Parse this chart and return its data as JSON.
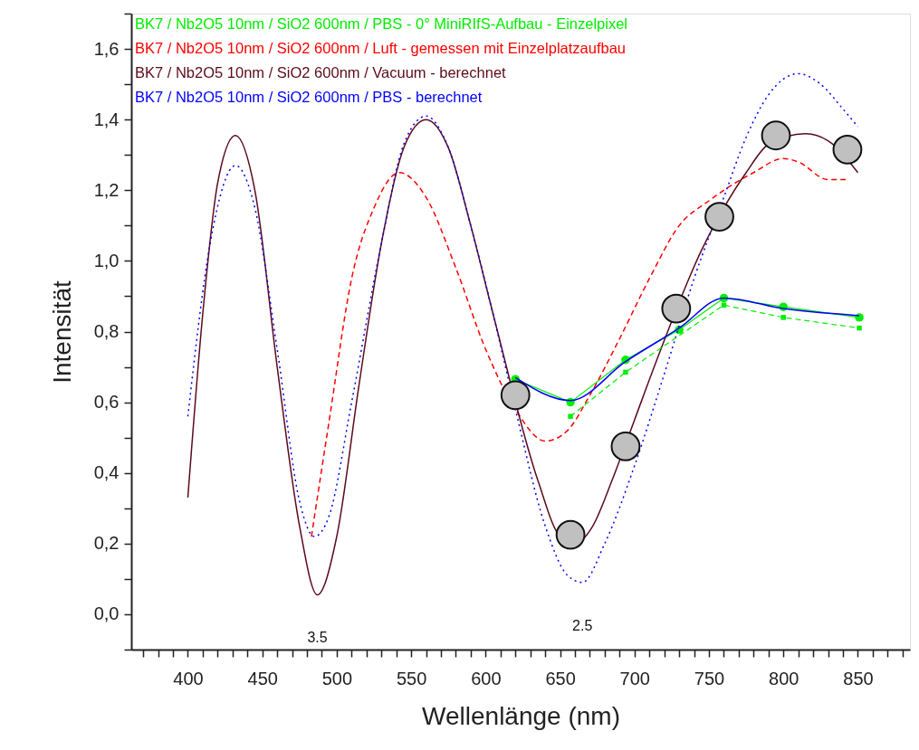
{
  "chart_data": {
    "type": "line",
    "xlabel": "Wellenlänge (nm)",
    "ylabel": "Intensität",
    "xlim": [
      362,
      885
    ],
    "ylim": [
      -0.1,
      1.7
    ],
    "xticks": [
      {
        "value": 370,
        "label": null
      },
      {
        "value": 380,
        "label": null
      },
      {
        "value": 390,
        "label": null
      },
      400,
      {
        "value": 410,
        "label": null
      },
      {
        "value": 420,
        "label": null
      },
      {
        "value": 430,
        "label": null
      },
      {
        "value": 440,
        "label": null
      },
      450,
      {
        "value": 460,
        "label": null
      },
      {
        "value": 470,
        "label": null
      },
      {
        "value": 480,
        "label": null
      },
      {
        "value": 490,
        "label": null
      },
      500,
      {
        "value": 510,
        "label": null
      },
      {
        "value": 520,
        "label": null
      },
      {
        "value": 530,
        "label": null
      },
      {
        "value": 540,
        "label": null
      },
      550,
      {
        "value": 560,
        "label": null
      },
      {
        "value": 570,
        "label": null
      },
      {
        "value": 580,
        "label": null
      },
      {
        "value": 590,
        "label": null
      },
      600,
      {
        "value": 610,
        "label": null
      },
      {
        "value": 620,
        "label": null
      },
      {
        "value": 630,
        "label": null
      },
      {
        "value": 640,
        "label": null
      },
      650,
      {
        "value": 660,
        "label": null
      },
      {
        "value": 670,
        "label": null
      },
      {
        "value": 680,
        "label": null
      },
      {
        "value": 690,
        "label": null
      },
      700,
      {
        "value": 710,
        "label": null
      },
      {
        "value": 720,
        "label": null
      },
      {
        "value": 730,
        "label": null
      },
      {
        "value": 740,
        "label": null
      },
      750,
      {
        "value": 760,
        "label": null
      },
      {
        "value": 770,
        "label": null
      },
      {
        "value": 780,
        "label": null
      },
      {
        "value": 790,
        "label": null
      },
      800,
      {
        "value": 810,
        "label": null
      },
      {
        "value": 820,
        "label": null
      },
      {
        "value": 830,
        "label": null
      },
      {
        "value": 840,
        "label": null
      },
      850,
      {
        "value": 860,
        "label": null
      },
      {
        "value": 870,
        "label": null
      },
      {
        "value": 880,
        "label": null
      }
    ],
    "yticks": [
      {
        "value": -0.1,
        "label": null
      },
      {
        "value": 0,
        "label": "0,0"
      },
      {
        "value": 0.1,
        "label": null
      },
      {
        "value": 0.2,
        "label": "0,2"
      },
      {
        "value": 0.3,
        "label": null
      },
      {
        "value": 0.4,
        "label": "0,4"
      },
      {
        "value": 0.5,
        "label": null
      },
      {
        "value": 0.6,
        "label": "0,6"
      },
      {
        "value": 0.7,
        "label": null
      },
      {
        "value": 0.8,
        "label": "0,8"
      },
      {
        "value": 0.9,
        "label": null
      },
      {
        "value": 1.0,
        "label": "1,0"
      },
      {
        "value": 1.1,
        "label": null
      },
      {
        "value": 1.2,
        "label": "1,2"
      },
      {
        "value": 1.3,
        "label": null
      },
      {
        "value": 1.4,
        "label": "1,4"
      },
      {
        "value": 1.5,
        "label": null
      },
      {
        "value": 1.6,
        "label": "1,6"
      },
      {
        "value": 1.7,
        "label": null
      }
    ],
    "grid": false,
    "legend": "top left",
    "annotations": [
      {
        "text": "3.5",
        "x": 487,
        "y": 0.055
      },
      {
        "text": "2.5",
        "x": 665,
        "y": 0.09
      }
    ],
    "series": [
      {
        "name": "BK7 / Nb2O5 10nm / SiO2 600nm / PBS - 0° MiniRIfS-Aufbau - Einzelpixel",
        "color": "#00ee00",
        "marker": "circle",
        "line_style": "solid",
        "x": [
          620,
          657,
          694,
          730,
          760,
          800,
          851
        ],
        "values": [
          0.665,
          0.6,
          0.72,
          0.805,
          0.895,
          0.87,
          0.84
        ]
      },
      {
        "name": "BK7 / Nb2O5 10nm / SiO2 600nm / Luft - gemessen mit Einzelplatzaufbau",
        "color": "#ff0000",
        "marker": "none",
        "line_style": "dashed",
        "x": [
          483,
          495,
          510,
          525,
          542,
          560,
          580,
          600,
          620,
          640,
          655,
          670,
          690,
          710,
          730,
          750,
          760,
          780,
          800,
          810,
          830,
          843
        ],
        "values": [
          0.22,
          0.55,
          0.95,
          1.15,
          1.25,
          1.18,
          0.98,
          0.75,
          0.58,
          0.49,
          0.52,
          0.62,
          0.78,
          0.95,
          1.1,
          1.17,
          1.2,
          1.25,
          1.29,
          1.28,
          1.23,
          1.23
        ]
      },
      {
        "name": "BK7 / Nb2O5 10nm / SiO2 600nm / Vacuum - berechnet",
        "color": "#5c0a1a",
        "marker": "none",
        "line_style": "solid",
        "x": [
          400,
          410,
          420,
          432,
          445,
          460,
          475,
          487,
          500,
          515,
          530,
          545,
          560,
          575,
          590,
          605,
          635,
          650,
          660,
          672,
          685,
          700,
          715,
          745,
          760,
          775,
          790,
          815,
          830,
          850
        ],
        "values": [
          0.33,
          0.85,
          1.22,
          1.355,
          1.2,
          0.7,
          0.25,
          0.055,
          0.22,
          0.65,
          1.05,
          1.32,
          1.4,
          1.32,
          1.1,
          0.85,
          0.38,
          0.22,
          0.2,
          0.25,
          0.38,
          0.55,
          0.72,
          1.03,
          1.15,
          1.25,
          1.33,
          1.36,
          1.34,
          1.25
        ]
      },
      {
        "name": "BK7 / Nb2O5 10nm / SiO2 600nm / PBS - berechnet",
        "color": "#0000ff",
        "marker": "none",
        "line_style": "dotted",
        "x": [
          400,
          415,
          432,
          445,
          460,
          475,
          485,
          495,
          510,
          530,
          545,
          560,
          575,
          590,
          605,
          620,
          640,
          655,
          665,
          680,
          700,
          720,
          740,
          760,
          775,
          790,
          810,
          825,
          840,
          850
        ],
        "values": [
          0.56,
          1.05,
          1.27,
          1.15,
          0.75,
          0.32,
          0.22,
          0.28,
          0.6,
          1.05,
          1.33,
          1.41,
          1.32,
          1.1,
          0.85,
          0.58,
          0.25,
          0.11,
          0.09,
          0.2,
          0.42,
          0.68,
          0.95,
          1.18,
          1.35,
          1.47,
          1.53,
          1.5,
          1.43,
          1.38
        ]
      },
      {
        "color": "#00ee00",
        "marker": "square",
        "line_style": "dashed",
        "x": [
          657,
          694,
          760,
          800,
          851
        ],
        "values": [
          0.56,
          0.685,
          0.875,
          0.84,
          0.81
        ]
      },
      {
        "color": "#0000ff",
        "marker": "none",
        "line_style": "solid",
        "x": [
          620,
          657,
          694,
          730,
          760,
          800,
          851
        ],
        "values": [
          0.67,
          0.605,
          0.715,
          0.81,
          0.895,
          0.865,
          0.845
        ]
      },
      {
        "type": "scatter",
        "color": "#c0c0c0",
        "marker": "circle",
        "x": [
          620,
          657,
          694,
          728,
          757,
          795,
          843
        ],
        "values": [
          0.62,
          0.225,
          0.475,
          0.865,
          1.125,
          1.355,
          1.315
        ]
      }
    ]
  }
}
